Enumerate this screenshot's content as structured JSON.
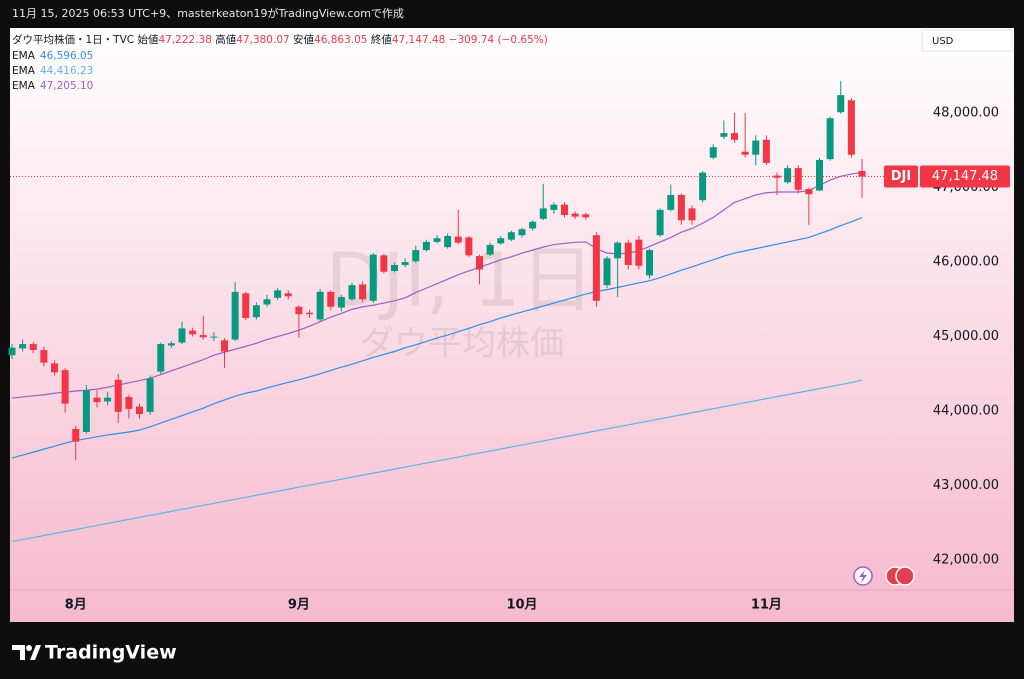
{
  "header": "11月 15, 2025 06:53 UTC+9、masterkeaton19がTradingView.comで作成",
  "footer": "TradingView",
  "chart_data": {
    "type": "candlestick",
    "legend": {
      "symbol": "ダウ平均株価・1日・TVC",
      "open_label": "始値",
      "open": "47,222.38",
      "high_label": "高値",
      "high": "47,380.07",
      "low_label": "安値",
      "low": "46,863.05",
      "close_label": "終値",
      "close": "47,147.48",
      "change": "−309.74 (−0.65%)"
    },
    "watermark": "DJI, 1日",
    "watermark_sub": "ダウ平均株価",
    "currency": "USD",
    "last_price": {
      "symbol": "DJI",
      "label": "47,147.48"
    },
    "up_color": "#089981",
    "down_color": "#f23645",
    "categories": [
      null,
      null,
      null,
      null,
      null,
      null,
      "8月",
      null,
      null,
      null,
      null,
      null,
      null,
      null,
      null,
      null,
      null,
      null,
      null,
      null,
      null,
      null,
      null,
      null,
      null,
      null,
      null,
      "9月",
      null,
      null,
      null,
      null,
      null,
      null,
      null,
      null,
      null,
      null,
      null,
      null,
      null,
      null,
      null,
      null,
      null,
      null,
      null,
      null,
      "10月",
      null,
      null,
      null,
      null,
      null,
      null,
      null,
      null,
      null,
      null,
      null,
      null,
      null,
      null,
      null,
      null,
      null,
      null,
      null,
      null,
      null,
      null,
      "11月",
      null,
      null,
      null,
      null,
      null,
      null,
      null,
      null,
      null
    ],
    "open": [
      44750,
      44840,
      44900,
      44820,
      44640,
      44550,
      43760,
      43720,
      44180,
      44130,
      44420,
      44190,
      44060,
      43990,
      44530,
      44880,
      44920,
      45080,
      45020,
      44990,
      44950,
      44960,
      45580,
      45260,
      45430,
      45520,
      45580,
      45400,
      45320,
      45230,
      45600,
      45390,
      45500,
      45700,
      45480,
      46090,
      45880,
      45960,
      46010,
      46160,
      46270,
      46200,
      46340,
      46330,
      46080,
      46100,
      46250,
      46300,
      46360,
      46450,
      46580,
      46700,
      46770,
      46650,
      46640,
      46360,
      45690,
      46050,
      46260,
      46300,
      45820,
      46360,
      46700,
      46900,
      46720,
      46830,
      47400,
      47680,
      47730,
      47480,
      47440,
      47640,
      47160,
      47070,
      47260,
      46980,
      46960,
      47380,
      48010,
      48170,
      47222.38
    ],
    "high": [
      44900,
      44960,
      44930,
      44860,
      44680,
      44580,
      43800,
      44350,
      44280,
      44260,
      44500,
      44220,
      44100,
      44480,
      44920,
      44940,
      45200,
      45120,
      45280,
      45060,
      44980,
      45730,
      45600,
      45460,
      45560,
      45650,
      45620,
      45420,
      45360,
      45640,
      45620,
      45560,
      45720,
      45740,
      46120,
      46110,
      45990,
      46050,
      46220,
      46300,
      46360,
      46380,
      46700,
      46350,
      46100,
      46260,
      46350,
      46420,
      46460,
      46560,
      47050,
      46800,
      46800,
      46680,
      46660,
      46400,
      46080,
      46280,
      46300,
      46350,
      46180,
      46720,
      47040,
      46920,
      46760,
      47220,
      47580,
      47900,
      48000,
      48000,
      47700,
      47700,
      47200,
      47300,
      47300,
      47000,
      47400,
      47950,
      48430,
      48200,
      47380.07
    ],
    "low": [
      44700,
      44800,
      44780,
      44600,
      44480,
      43980,
      43340,
      43700,
      44050,
      44080,
      43840,
      43900,
      43900,
      43950,
      44500,
      44850,
      44900,
      45000,
      44960,
      44940,
      44580,
      44940,
      45220,
      45230,
      45400,
      45490,
      45500,
      44990,
      45250,
      45200,
      45350,
      45340,
      45480,
      45460,
      45450,
      45850,
      45860,
      45930,
      45990,
      46140,
      46250,
      46180,
      46240,
      46070,
      45700,
      46080,
      46230,
      46280,
      46330,
      46420,
      46560,
      46650,
      46600,
      46580,
      46570,
      45400,
      45650,
      45530,
      45900,
      45900,
      45780,
      46340,
      46680,
      46500,
      46500,
      46800,
      47380,
      47650,
      47600,
      47400,
      47300,
      47300,
      46900,
      47050,
      46920,
      46500,
      46950,
      47360,
      47990,
      47400,
      46863.05
    ],
    "close": [
      44850,
      44900,
      44820,
      44650,
      44520,
      44100,
      43590,
      44280,
      44120,
      44180,
      43990,
      44030,
      43960,
      44440,
      44900,
      44910,
      45110,
      45030,
      44990,
      45000,
      44800,
      45600,
      45250,
      45420,
      45500,
      45620,
      45540,
      45300,
      45300,
      45600,
      45400,
      45530,
      45690,
      45500,
      46100,
      45870,
      45960,
      46000,
      46160,
      46270,
      46320,
      46350,
      46260,
      46090,
      45900,
      46230,
      46320,
      46400,
      46440,
      46540,
      46720,
      46770,
      46630,
      46610,
      46600,
      45480,
      46050,
      46260,
      45960,
      45950,
      46160,
      46700,
      46900,
      46560,
      46560,
      47200,
      47540,
      47730,
      47640,
      47440,
      47630,
      47330,
      47130,
      47260,
      46970,
      46910,
      47370,
      47930,
      48240,
      47440,
      47147.48
    ],
    "series": [
      {
        "name": "EMA",
        "value_label": "46,596.05",
        "color": "#2f8fe8",
        "values": [
          43370,
          43410,
          43450,
          43490,
          43530,
          43570,
          43605,
          43630,
          43655,
          43680,
          43700,
          43720,
          43745,
          43790,
          43840,
          43890,
          43940,
          43990,
          44040,
          44100,
          44150,
          44200,
          44240,
          44270,
          44310,
          44350,
          44385,
          44420,
          44460,
          44500,
          44545,
          44590,
          44630,
          44675,
          44720,
          44760,
          44800,
          44850,
          44890,
          44935,
          44980,
          45020,
          45065,
          45110,
          45160,
          45200,
          45250,
          45290,
          45330,
          45370,
          45410,
          45450,
          45490,
          45530,
          45570,
          45605,
          45630,
          45660,
          45690,
          45720,
          45750,
          45790,
          45840,
          45890,
          45935,
          45985,
          46030,
          46080,
          46120,
          46150,
          46180,
          46210,
          46240,
          46270,
          46300,
          46330,
          46380,
          46430,
          46490,
          46540,
          46596.05
        ]
      },
      {
        "name": "EMA",
        "value_label": "44,416.23",
        "color": "#5bb6e8",
        "values": [
          42250,
          42277,
          42304,
          42331,
          42358,
          42385,
          42412,
          42439,
          42466,
          42493,
          42520,
          42547,
          42574,
          42601,
          42628,
          42655,
          42682,
          42709,
          42736,
          42763,
          42790,
          42817,
          42844,
          42871,
          42898,
          42925,
          42952,
          42979,
          43006,
          43033,
          43060,
          43087,
          43114,
          43141,
          43168,
          43195,
          43222,
          43249,
          43276,
          43303,
          43330,
          43357,
          43384,
          43411,
          43438,
          43465,
          43492,
          43519,
          43546,
          43573,
          43600,
          43627,
          43654,
          43681,
          43708,
          43735,
          43762,
          43789,
          43816,
          43843,
          43870,
          43897,
          43924,
          43951,
          43978,
          44005,
          44032,
          44059,
          44086,
          44113,
          44140,
          44167,
          44194,
          44221,
          44248,
          44275,
          44302,
          44329,
          44356,
          44383,
          44416.23
        ]
      },
      {
        "name": "EMA",
        "value_label": "47,205.10",
        "color": "#9b5fc6",
        "values": [
          44175,
          44190,
          44205,
          44220,
          44240,
          44255,
          44270,
          44280,
          44295,
          44320,
          44350,
          44380,
          44410,
          44440,
          44490,
          44540,
          44590,
          44640,
          44690,
          44750,
          44790,
          44830,
          44870,
          44910,
          44960,
          45000,
          45040,
          45085,
          45140,
          45200,
          45260,
          45310,
          45365,
          45400,
          45420,
          45450,
          45480,
          45520,
          45590,
          45650,
          45710,
          45770,
          45830,
          45880,
          45930,
          45980,
          46030,
          46070,
          46120,
          46160,
          46200,
          46235,
          46250,
          46265,
          46270,
          46180,
          46120,
          46110,
          46120,
          46150,
          46210,
          46270,
          46330,
          46400,
          46450,
          46520,
          46600,
          46700,
          46800,
          46850,
          46900,
          46930,
          46940,
          46940,
          46940,
          46960,
          47030,
          47100,
          47150,
          47180,
          47205.1
        ]
      }
    ],
    "ylim": [
      41600,
      49140
    ],
    "yticks": [
      {
        "value": 42000,
        "label": "42,000.00"
      },
      {
        "value": 43000,
        "label": "43,000.00"
      },
      {
        "value": 44000,
        "label": "44,000.00"
      },
      {
        "value": 45000,
        "label": "45,000.00"
      },
      {
        "value": 46000,
        "label": "46,000.00"
      },
      {
        "value": 47000,
        "label": "47,000.00"
      },
      {
        "value": 48000,
        "label": "48,000.00"
      }
    ],
    "grid": false
  }
}
